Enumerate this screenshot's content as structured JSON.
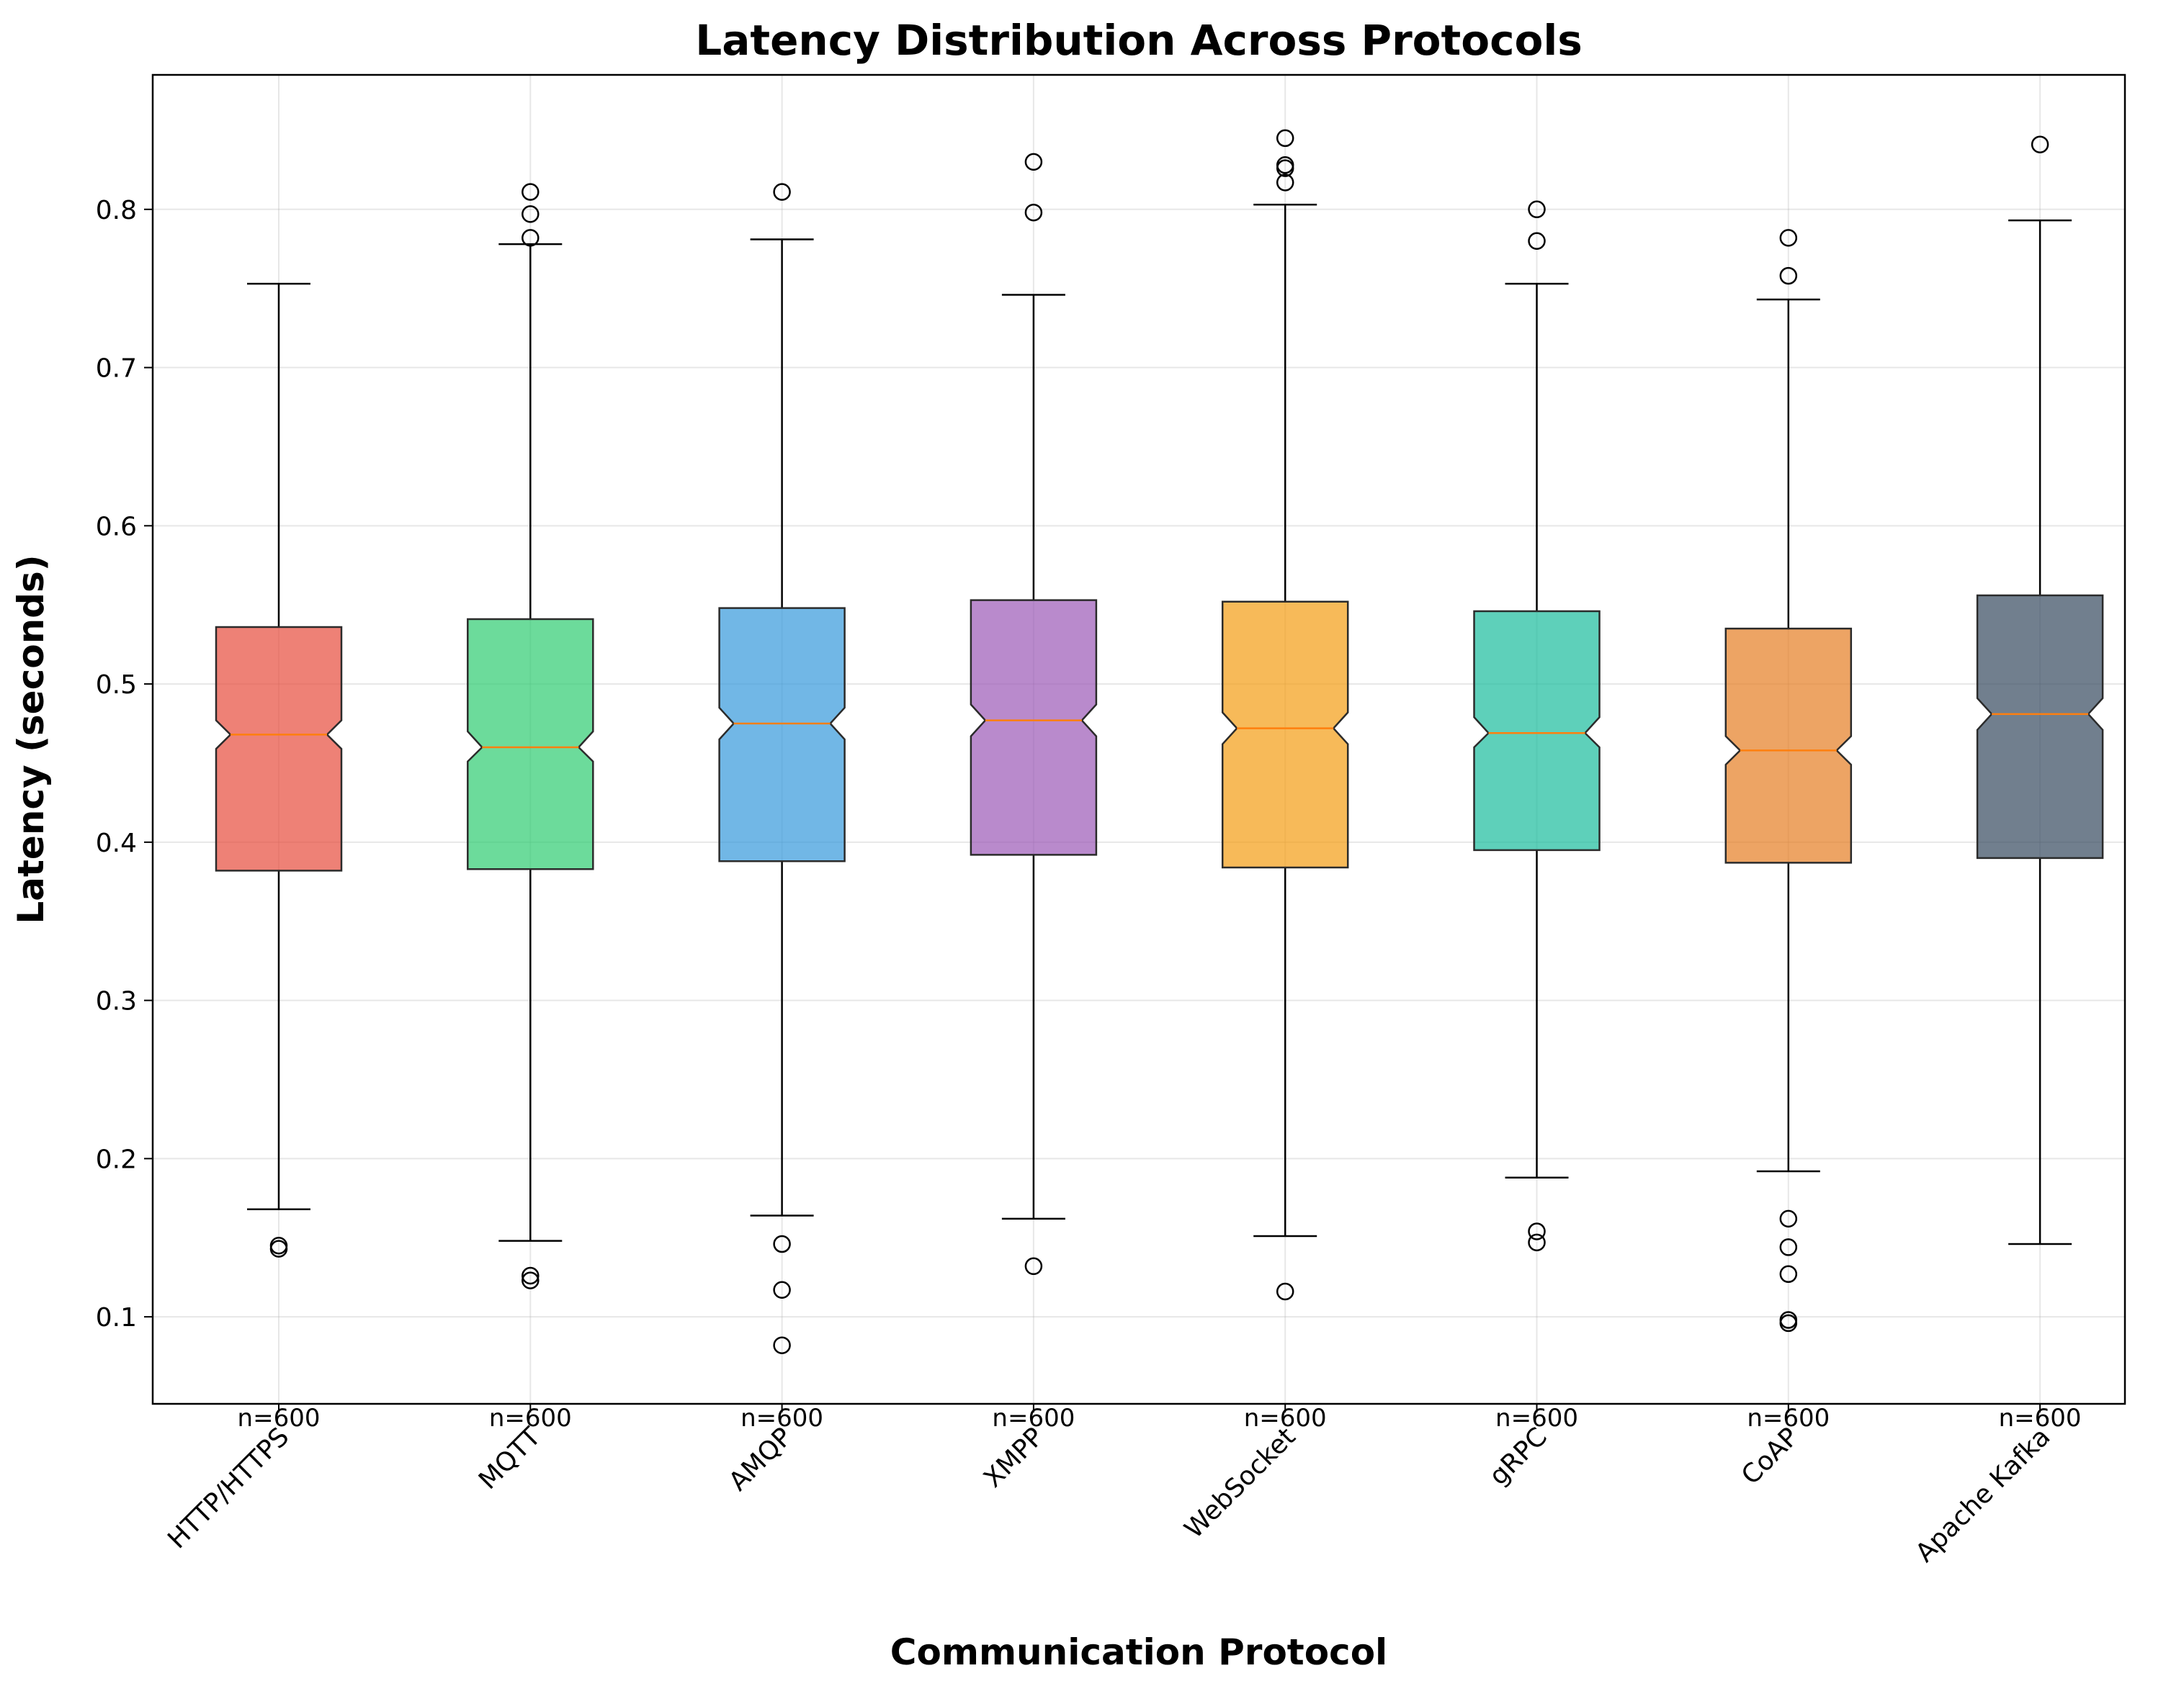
{
  "chart_data": {
    "type": "box",
    "title": "Latency Distribution Across Protocols",
    "xlabel": "Communication Protocol",
    "ylabel": "Latency (seconds)",
    "ylim": [
      0.045,
      0.885
    ],
    "yticks": [
      "0.1",
      "0.2",
      "0.3",
      "0.4",
      "0.5",
      "0.6",
      "0.7",
      "0.8"
    ],
    "grid": true,
    "notched": true,
    "median_color": "#ff7f0e",
    "categories": [
      "HTTP/HTTPS",
      "MQTT",
      "AMQP",
      "XMPP",
      "WebSocket",
      "gRPC",
      "CoAP",
      "Apache Kafka"
    ],
    "boxes": [
      {
        "name": "HTTP/HTTPS",
        "color": "#e74c3c",
        "n_label": "n=600",
        "whisker_low": 0.168,
        "q1": 0.382,
        "median": 0.468,
        "q3": 0.536,
        "whisker_high": 0.753,
        "notch_low": 0.459,
        "notch_high": 0.477,
        "outliers": [
          0.145,
          0.143
        ]
      },
      {
        "name": "MQTT",
        "color": "#2ecc71",
        "n_label": "n=600",
        "whisker_low": 0.148,
        "q1": 0.383,
        "median": 0.46,
        "q3": 0.541,
        "whisker_high": 0.778,
        "notch_low": 0.451,
        "notch_high": 0.47,
        "outliers": [
          0.126,
          0.123,
          0.782,
          0.797,
          0.811
        ]
      },
      {
        "name": "AMQP",
        "color": "#3498db",
        "n_label": "n=600",
        "whisker_low": 0.164,
        "q1": 0.388,
        "median": 0.475,
        "q3": 0.548,
        "whisker_high": 0.781,
        "notch_low": 0.465,
        "notch_high": 0.485,
        "outliers": [
          0.146,
          0.117,
          0.082,
          0.811
        ]
      },
      {
        "name": "XMPP",
        "color": "#9b59b6",
        "n_label": "n=600",
        "whisker_low": 0.162,
        "q1": 0.392,
        "median": 0.477,
        "q3": 0.553,
        "whisker_high": 0.746,
        "notch_low": 0.467,
        "notch_high": 0.487,
        "outliers": [
          0.132,
          0.798,
          0.83
        ]
      },
      {
        "name": "WebSocket",
        "color": "#f39c12",
        "n_label": "n=600",
        "whisker_low": 0.151,
        "q1": 0.384,
        "median": 0.472,
        "q3": 0.552,
        "whisker_high": 0.803,
        "notch_low": 0.462,
        "notch_high": 0.482,
        "outliers": [
          0.116,
          0.817,
          0.826,
          0.828,
          0.845
        ]
      },
      {
        "name": "gRPC",
        "color": "#1abc9c",
        "n_label": "n=600",
        "whisker_low": 0.188,
        "q1": 0.395,
        "median": 0.469,
        "q3": 0.546,
        "whisker_high": 0.753,
        "notch_low": 0.46,
        "notch_high": 0.479,
        "outliers": [
          0.154,
          0.147,
          0.78,
          0.8
        ]
      },
      {
        "name": "CoAP",
        "color": "#e67e22",
        "n_label": "n=600",
        "whisker_low": 0.192,
        "q1": 0.387,
        "median": 0.458,
        "q3": 0.535,
        "whisker_high": 0.743,
        "notch_low": 0.449,
        "notch_high": 0.467,
        "outliers": [
          0.162,
          0.144,
          0.127,
          0.098,
          0.096,
          0.758,
          0.782
        ]
      },
      {
        "name": "Apache Kafka",
        "color": "#34495e",
        "n_label": "n=600",
        "whisker_low": 0.146,
        "q1": 0.39,
        "median": 0.481,
        "q3": 0.556,
        "whisker_high": 0.793,
        "notch_low": 0.471,
        "notch_high": 0.491,
        "outliers": [
          0.841
        ]
      }
    ]
  }
}
